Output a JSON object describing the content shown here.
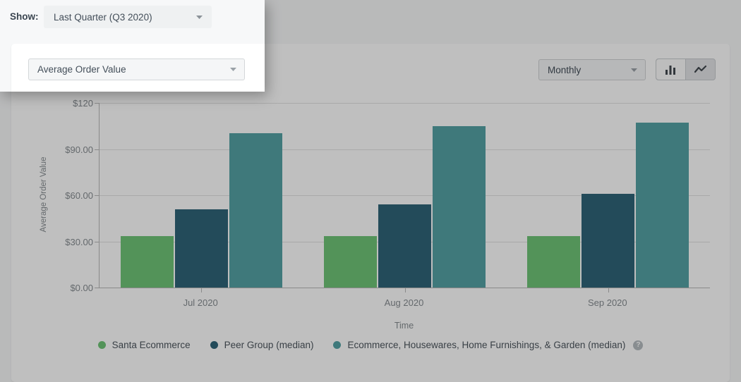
{
  "topbar": {
    "show_label": "Show:",
    "show_value": "Last Quarter (Q3 2020)"
  },
  "card": {
    "metric_select_value": "Average Order Value",
    "interval_select_value": "Monthly",
    "chart_type_selected": "bar"
  },
  "colors": {
    "santa_green": "#6fc577",
    "peer_navy": "#2f6579",
    "industry_teal": "#55a2a4",
    "gridline": "#e2e2e2",
    "axis": "#b8b8b8",
    "dim_overlay": "rgba(0,0,0,0.25)"
  },
  "chart_data": {
    "type": "bar",
    "title": "",
    "xlabel": "Time",
    "ylabel": "Average Order Value",
    "ylim": [
      0,
      120
    ],
    "grid": true,
    "legend_position": "bottom",
    "categories": [
      "Jul 2020",
      "Aug 2020",
      "Sep 2020"
    ],
    "series": [
      {
        "name": "Santa Ecommerce",
        "color": "#6fc577",
        "values": [
          33.5,
          33.5,
          33.5
        ]
      },
      {
        "name": "Peer Group (median)",
        "color": "#2f6579",
        "values": [
          51,
          54,
          61
        ]
      },
      {
        "name": "Ecommerce, Housewares, Home Furnishings, & Garden (median)",
        "color": "#55a2a4",
        "values": [
          100.5,
          105,
          107
        ]
      }
    ],
    "yticks": [
      {
        "value": 120,
        "label": "$120"
      },
      {
        "value": 90,
        "label": "$90.00"
      },
      {
        "value": 60,
        "label": "$60.00"
      },
      {
        "value": 30,
        "label": "$30.00"
      },
      {
        "value": 0,
        "label": "$0.00"
      }
    ],
    "legend_help": "?"
  }
}
